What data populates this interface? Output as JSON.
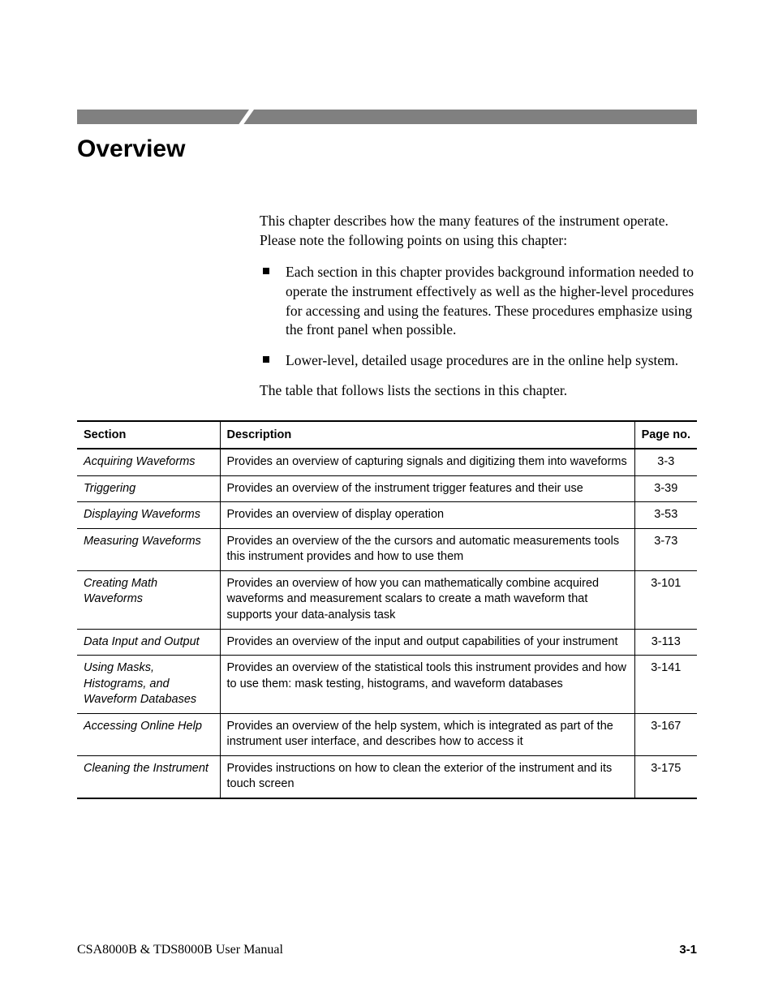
{
  "title": "Overview",
  "intro": "This chapter describes how the many features of the instrument operate. Please note the following points on using this chapter:",
  "bullets": [
    "Each section in this chapter provides background information needed to operate the instrument effectively as well as the higher-level procedures for accessing and using the features. These procedures emphasize using the front panel when possible.",
    "Lower-level, detailed usage procedures are in the online help system."
  ],
  "lead_out": "The table that follows lists the sections in this chapter.",
  "table": {
    "columns": [
      "Section",
      "Description",
      "Page no."
    ],
    "rows": [
      {
        "section": "Acquiring Waveforms",
        "description": "Provides an overview of capturing signals and digitizing them into waveforms",
        "page": "3-3"
      },
      {
        "section": "Triggering",
        "description": "Provides an overview of the instrument trigger features and their use",
        "page": "3-39"
      },
      {
        "section": "Displaying Waveforms",
        "description": "Provides an overview of display operation",
        "page": "3-53"
      },
      {
        "section": "Measuring Waveforms",
        "description": "Provides an overview of the the cursors and automatic measurements tools this instrument provides and how to use them",
        "page": "3-73"
      },
      {
        "section": "Creating Math Waveforms",
        "description": "Provides an overview of how you can mathematically combine acquired waveforms and measurement scalars to create a math waveform that supports your data-analysis task",
        "page": "3-101"
      },
      {
        "section": "Data Input and Output",
        "description": "Provides an overview of the input and output capabilities of your instrument",
        "page": "3-113"
      },
      {
        "section": "Using Masks, Histograms, and Waveform Databases",
        "description": "Provides an overview of the statistical tools this instrument provides and how to use them: mask testing, histograms, and waveform databases",
        "page": "3-141"
      },
      {
        "section": "Accessing Online Help",
        "description": "Provides an overview of the help system, which is integrated as part of the instrument user interface, and describes how to access it",
        "page": "3-167"
      },
      {
        "section": "Cleaning the Instrument",
        "description": "Provides instructions on how to clean the exterior of the instrument and its touch screen",
        "page": "3-175"
      }
    ]
  },
  "footer": {
    "left": "CSA8000B & TDS8000B User Manual",
    "right": "3-1"
  },
  "colors": {
    "header_bar": "#808080",
    "text": "#000000",
    "background": "#ffffff",
    "rule": "#000000"
  },
  "typography": {
    "title_font": "Arial",
    "title_size_pt": 22,
    "title_weight": 700,
    "body_font": "Times New Roman",
    "body_size_pt": 13,
    "table_font": "Arial",
    "table_size_pt": 11
  }
}
